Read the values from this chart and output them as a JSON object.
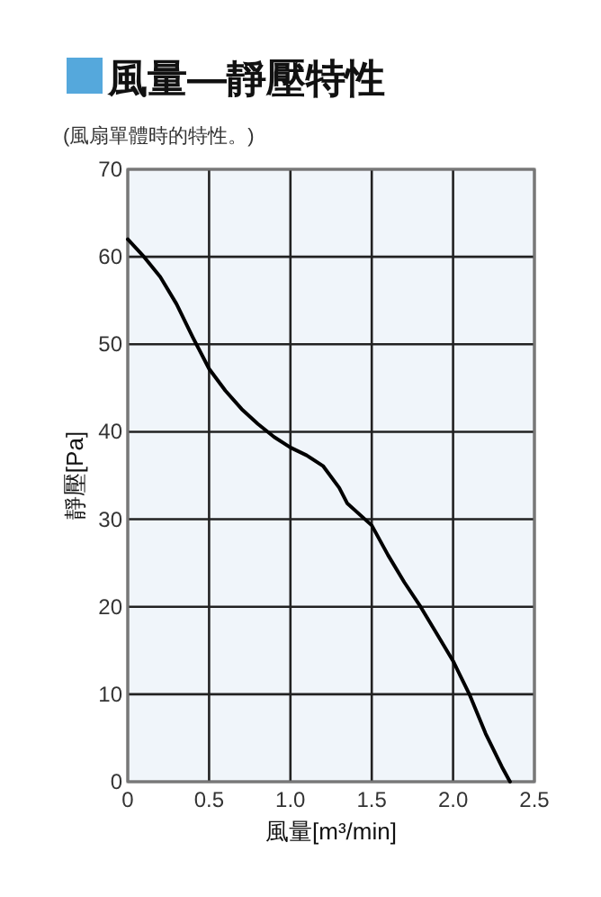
{
  "chart_data": {
    "type": "line",
    "title": "風量—靜壓特性",
    "subtitle": "(風扇單體時的特性。)",
    "xlabel": "風量[m³/min]",
    "ylabel": "靜壓[Pa]",
    "x": [
      0,
      0.1,
      0.2,
      0.3,
      0.4,
      0.5,
      0.6,
      0.7,
      0.8,
      0.9,
      1.0,
      1.1,
      1.2,
      1.3,
      1.35,
      1.5,
      1.6,
      1.7,
      1.8,
      1.9,
      2.0,
      2.1,
      2.2,
      2.3,
      2.35
    ],
    "series": [
      {
        "color": "#000000",
        "values": [
          62,
          60,
          57.7,
          54.6,
          50.8,
          47.2,
          44.7,
          42.6,
          40.9,
          39.4,
          38.2,
          37.3,
          36.1,
          33.6,
          31.8,
          29.3,
          25.9,
          22.8,
          20,
          16.9,
          13.8,
          10,
          5.5,
          1.7,
          0
        ]
      }
    ],
    "xlim": [
      0,
      2.5
    ],
    "ylim": [
      0,
      70
    ],
    "xticks": [
      0,
      0.5,
      {
        "value": 1.0,
        "label": "1.0"
      },
      1.5,
      {
        "value": 2.0,
        "label": "2.0"
      },
      2.5
    ],
    "yticks": [
      0,
      10,
      20,
      30,
      40,
      50,
      60,
      70
    ],
    "grid": true
  }
}
